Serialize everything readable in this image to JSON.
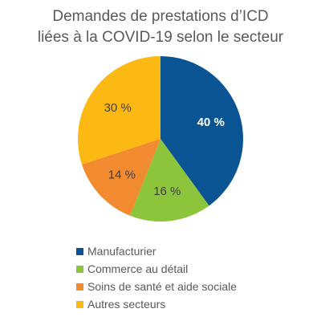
{
  "chart_data": {
    "type": "pie",
    "title_lines": [
      "Demandes de prestations d’ICD",
      "liées à la COVID-19 selon le secteur"
    ],
    "slices": [
      {
        "name": "Manufacturier",
        "value": 40,
        "label": "40 %",
        "color": "#0a5494",
        "label_color": "#ffffff"
      },
      {
        "name": "Commerce au détail",
        "value": 16,
        "label": "16 %",
        "color": "#8cc43c",
        "label_color": "#404040"
      },
      {
        "name": "Soins de santé et aide sociale",
        "value": 14,
        "label": "14 %",
        "color": "#f28a30",
        "label_color": "#404040"
      },
      {
        "name": "Autres secteurs",
        "value": 30,
        "label": "30 %",
        "color": "#fdb913",
        "label_color": "#404040"
      }
    ],
    "legend_position": "bottom"
  }
}
